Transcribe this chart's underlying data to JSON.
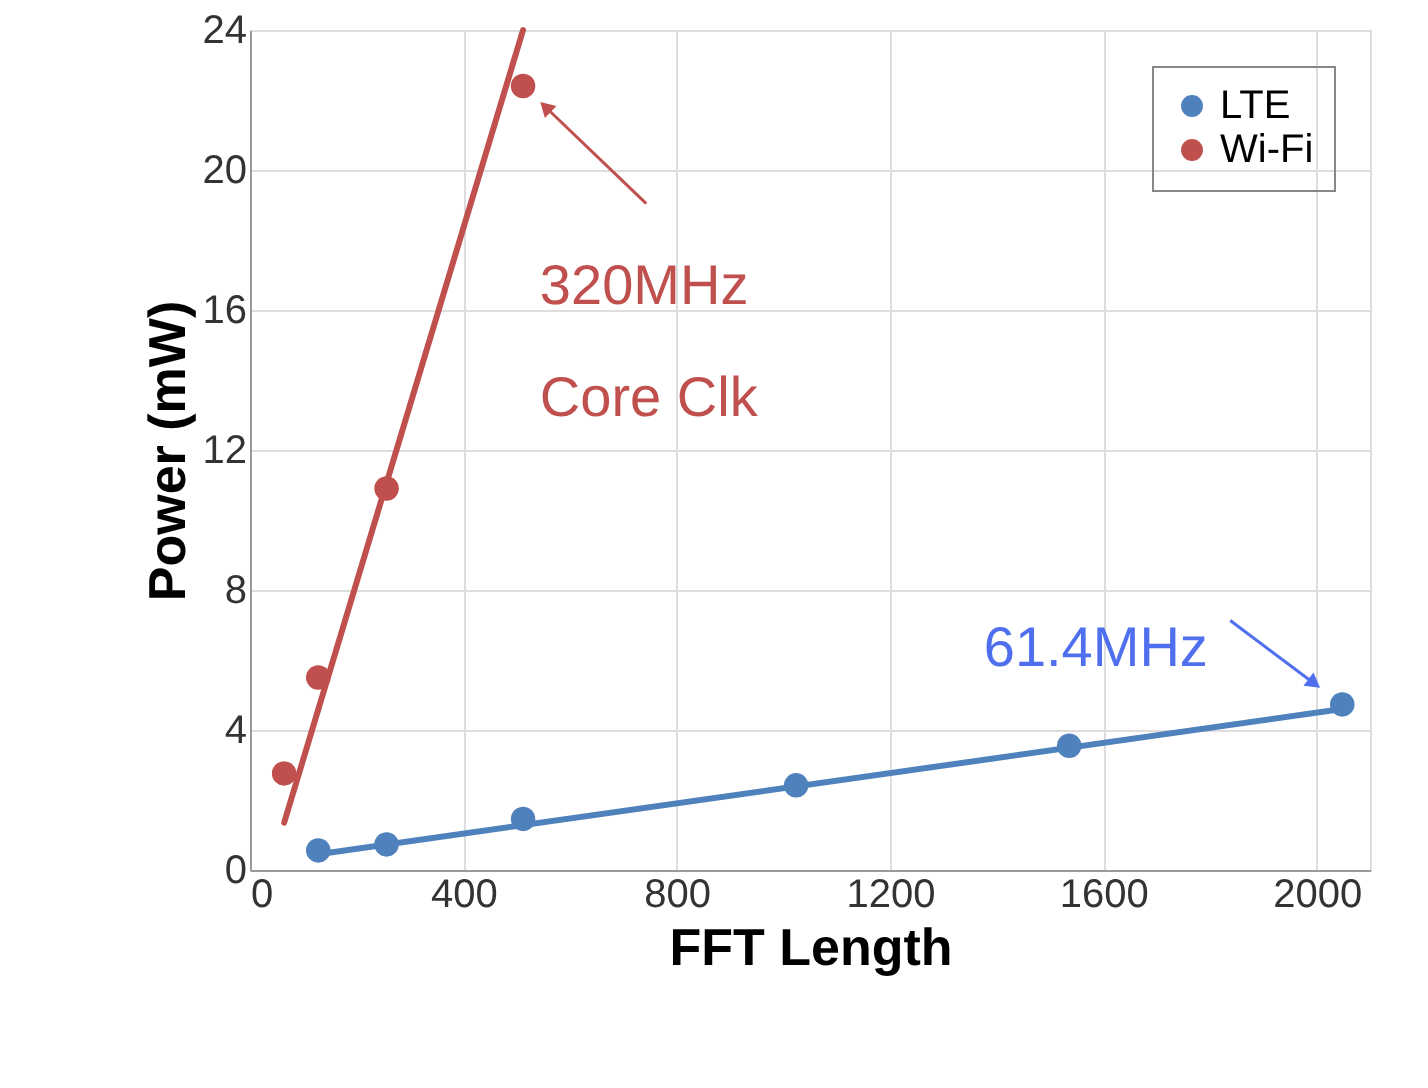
{
  "chart_data": {
    "type": "scatter",
    "xlabel": "FFT Length",
    "ylabel": "Power (mW)",
    "xlim": [
      0,
      2100
    ],
    "xticks": [
      0,
      400,
      800,
      1200,
      1600,
      2000
    ],
    "ylim": [
      0,
      24
    ],
    "yticks": [
      0,
      4,
      8,
      12,
      16,
      20,
      24
    ],
    "grid": true,
    "legend": "top right",
    "series": [
      {
        "name": "LTE",
        "color": "#4f81bd",
        "marker": "circle",
        "x": [
          128,
          256,
          512,
          1024,
          1536,
          2048
        ],
        "values": [
          0.56,
          0.73,
          1.46,
          2.42,
          3.55,
          4.73
        ]
      },
      {
        "name": "Wi-Fi",
        "color": "#c0504d",
        "marker": "circle",
        "x": [
          64,
          128,
          256,
          512
        ],
        "values": [
          2.76,
          5.5,
          10.9,
          22.4
        ]
      },
      {
        "color": "#4f81bd",
        "type": "line",
        "marker": "none",
        "x": [
          128,
          2048
        ],
        "values": [
          0.45,
          4.6
        ]
      },
      {
        "color": "#c0504d",
        "type": "line",
        "marker": "none",
        "x": [
          64,
          512
        ],
        "values": [
          1.35,
          24.0
        ]
      }
    ],
    "annotations": [
      {
        "text": "320MHz\nCore Clk",
        "x": 512,
        "y": 22.4
      },
      {
        "text": "61.4MHz",
        "x": 2048,
        "y": 4.73
      }
    ]
  }
}
